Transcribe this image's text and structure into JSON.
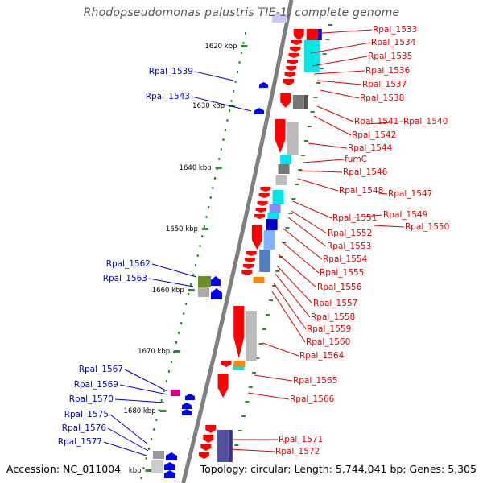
{
  "title": "Rhodopseudomonas palustris TIE-1, complete genome",
  "footer": {
    "accession": "Accession: NC_011004",
    "summary": "Topology: circular; Length: 5,744,041 bp; Genes: 5,305"
  },
  "colors": {
    "backbone": "#7f7f7f",
    "tick": "#2d8a2d",
    "forward_label": "#dd0000",
    "reverse_label": "#0000cc",
    "gene_forward": "#ff0000",
    "gene_reverse": "#0000ff"
  },
  "ticks": [
    {
      "label": "1620 kbp"
    },
    {
      "label": "1630 kbp"
    },
    {
      "label": "1640 kbp"
    },
    {
      "label": "1650 kbp"
    },
    {
      "label": "1660 kbp"
    },
    {
      "label": "1670 kbp"
    },
    {
      "label": "1680 kbp"
    },
    {
      "label": "kbp"
    }
  ],
  "genes_forward": [
    "Rpal_1533",
    "Rpal_1534",
    "Rpal_1535",
    "Rpal_1536",
    "Rpal_1537",
    "Rpal_1538",
    "Rpal_1541",
    "Rpal_1540",
    "Rpal_1542",
    "Rpal_1544",
    "fumC",
    "Rpal_1546",
    "Rpal_1548",
    "Rpal_1547",
    "Rpal_1551",
    "Rpal_1549",
    "Rpal_1550",
    "Rpal_1552",
    "Rpal_1553",
    "Rpal_1554",
    "Rpal_1555",
    "Rpal_1556",
    "Rpal_1557",
    "Rpal_1558",
    "Rpal_1559",
    "Rpal_1560",
    "Rpal_1564",
    "Rpal_1565",
    "Rpal_1566",
    "Rpal_1571",
    "Rpal_1572"
  ],
  "genes_reverse": [
    "Rpal_1539",
    "Rpal_1543",
    "Rpal_1562",
    "Rpal_1563",
    "Rpal_1567",
    "Rpal_1569",
    "Rpal_1570",
    "Rpal_1575",
    "Rpal_1576",
    "Rpal_1577"
  ]
}
